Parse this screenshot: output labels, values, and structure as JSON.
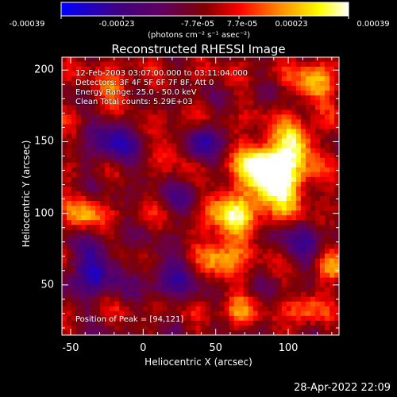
{
  "colorbar": {
    "tick_labels": [
      "-0.00039",
      "-0.00023",
      "-7.7e-05",
      "7.7e-05",
      "0.00023",
      "0.00039"
    ],
    "units": "(photons cm⁻² s⁻¹ asec⁻²)",
    "colors": [
      "#0000ff",
      "#400080",
      "#600060",
      "#800000",
      "#ff0000",
      "#ff8000",
      "#ffff00",
      "#ffffff"
    ]
  },
  "chart_data": {
    "type": "heatmap",
    "title": "Reconstructed RHESSI Image",
    "xlabel": "Heliocentric X (arcsec)",
    "ylabel": "Heliocentric Y (arcsec)",
    "xlim": [
      -56,
      135
    ],
    "ylim": [
      15,
      209
    ],
    "xticks": [
      -50,
      0,
      50,
      100
    ],
    "yticks": [
      50,
      100,
      150,
      200
    ],
    "colorscale_range": [
      -0.00039,
      0.00039
    ],
    "peak_position": [
      94,
      121
    ],
    "sources": [
      {
        "x": 94,
        "y": 121,
        "amp": 0.00039,
        "sigma": 14
      },
      {
        "x": 82,
        "y": 136,
        "amp": 0.0003,
        "sigma": 12
      },
      {
        "x": 105,
        "y": 150,
        "amp": 0.00028,
        "sigma": 10
      },
      {
        "x": 60,
        "y": 100,
        "amp": 0.00027,
        "sigma": 13
      },
      {
        "x": 55,
        "y": 70,
        "amp": 0.00022,
        "sigma": 11
      },
      {
        "x": 118,
        "y": 190,
        "amp": 0.00024,
        "sigma": 10
      },
      {
        "x": -40,
        "y": 100,
        "amp": 0.0002,
        "sigma": 9
      },
      {
        "x": -20,
        "y": 185,
        "amp": 0.00018,
        "sigma": 10
      },
      {
        "x": 25,
        "y": 150,
        "amp": 0.00015,
        "sigma": 9
      },
      {
        "x": 130,
        "y": 60,
        "amp": 0.0002,
        "sigma": 8
      },
      {
        "x": 110,
        "y": 30,
        "amp": 0.00018,
        "sigma": 8
      },
      {
        "x": 65,
        "y": 30,
        "amp": 0.00016,
        "sigma": 8
      },
      {
        "x": -20,
        "y": 150,
        "amp": -0.00025,
        "sigma": 12
      },
      {
        "x": 40,
        "y": 150,
        "amp": -0.0003,
        "sigma": 9
      },
      {
        "x": -35,
        "y": 60,
        "amp": -0.00028,
        "sigma": 13
      },
      {
        "x": 20,
        "y": 55,
        "amp": -0.0002,
        "sigma": 12
      },
      {
        "x": 110,
        "y": 80,
        "amp": -0.00018,
        "sigma": 11
      },
      {
        "x": 30,
        "y": 110,
        "amp": -0.00016,
        "sigma": 9
      }
    ]
  },
  "info": {
    "time_line": "12-Feb-2003 03:07:00.000 to 03:11:04.000",
    "detectors_line": "Detectors: 3F 4F 5F 6F 7F 8F, Att 0",
    "energy_line": "Energy Range: 25.0 - 50.0 keV",
    "clean_line": "Clean    Total counts: 5.29E+03",
    "peak_line": "Position of Peak = [94,121]"
  },
  "timestamp": "28-Apr-2022 22:09"
}
